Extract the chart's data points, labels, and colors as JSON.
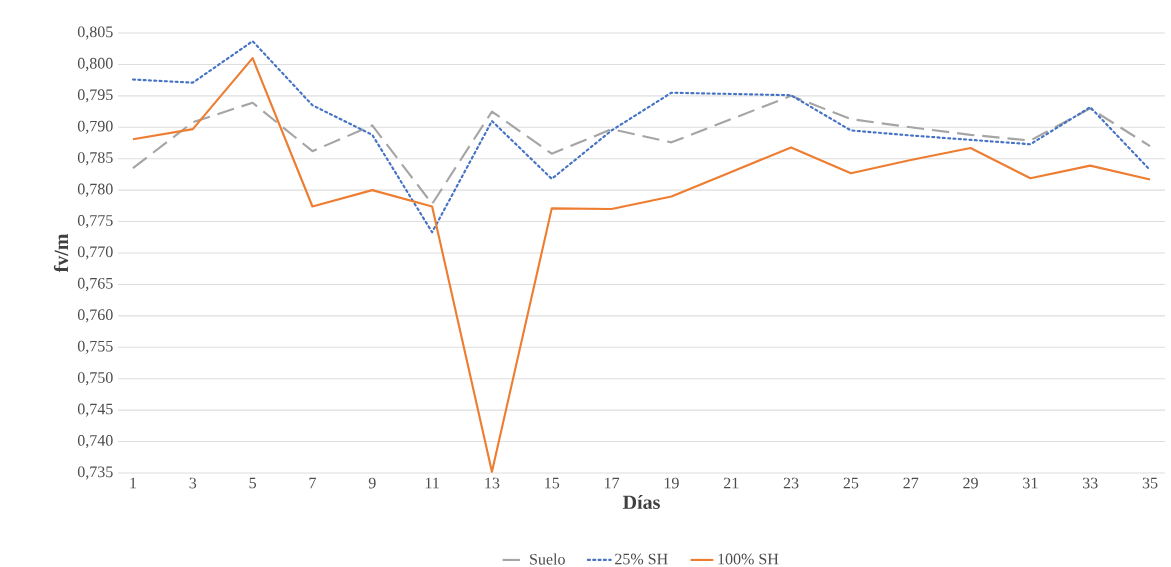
{
  "chart_data": {
    "type": "line",
    "xlabel": "Días",
    "ylabel": "fv/m",
    "categories": [
      "1",
      "3",
      "5",
      "7",
      "9",
      "11",
      "13",
      "15",
      "17",
      "19",
      "21",
      "23",
      "25",
      "27",
      "29",
      "31",
      "33",
      "35"
    ],
    "series": [
      {
        "name": "Suelo",
        "color": "#a5a5a5",
        "line_style": "dashed",
        "values": [
          0.7835,
          0.7908,
          0.7939,
          0.7862,
          0.7903,
          0.7778,
          0.7925,
          0.7858,
          0.7897,
          0.7876,
          0.7913,
          0.795,
          0.7913,
          0.79,
          0.7888,
          0.7879,
          0.793,
          0.787
        ]
      },
      {
        "name": "25% SH",
        "color": "#4472c4",
        "line_style": "dotted",
        "values": [
          0.7976,
          0.7971,
          0.8037,
          0.7935,
          0.7888,
          0.7733,
          0.791,
          0.7818,
          0.7895,
          0.7955,
          0.7953,
          0.7951,
          0.7895,
          0.7887,
          0.788,
          0.7873,
          0.7932,
          0.7832
        ]
      },
      {
        "name": "100% SH",
        "color": "#ed7d31",
        "line_style": "solid",
        "values": [
          0.7881,
          0.7897,
          0.801,
          0.7774,
          0.78,
          0.7774,
          0.7352,
          0.7771,
          0.777,
          0.779,
          0.7829,
          0.7868,
          0.7827,
          0.7848,
          0.7867,
          0.7819,
          0.7839,
          0.7817
        ]
      }
    ],
    "ylim": [
      0.735,
      0.805
    ],
    "yticks": [
      {
        "value": 0.735,
        "label": "0,735"
      },
      {
        "value": 0.74,
        "label": "0,740"
      },
      {
        "value": 0.745,
        "label": "0,745"
      },
      {
        "value": 0.75,
        "label": "0,750"
      },
      {
        "value": 0.755,
        "label": "0,755"
      },
      {
        "value": 0.76,
        "label": "0,760"
      },
      {
        "value": 0.765,
        "label": "0,765"
      },
      {
        "value": 0.77,
        "label": "0,770"
      },
      {
        "value": 0.775,
        "label": "0,775"
      },
      {
        "value": 0.78,
        "label": "0,780"
      },
      {
        "value": 0.785,
        "label": "0,785"
      },
      {
        "value": 0.79,
        "label": "0,790"
      },
      {
        "value": 0.795,
        "label": "0,795"
      },
      {
        "value": 0.8,
        "label": "0,800"
      },
      {
        "value": 0.805,
        "label": "0,805"
      }
    ],
    "grid": "y",
    "legend": "bottom",
    "marker": "none"
  }
}
